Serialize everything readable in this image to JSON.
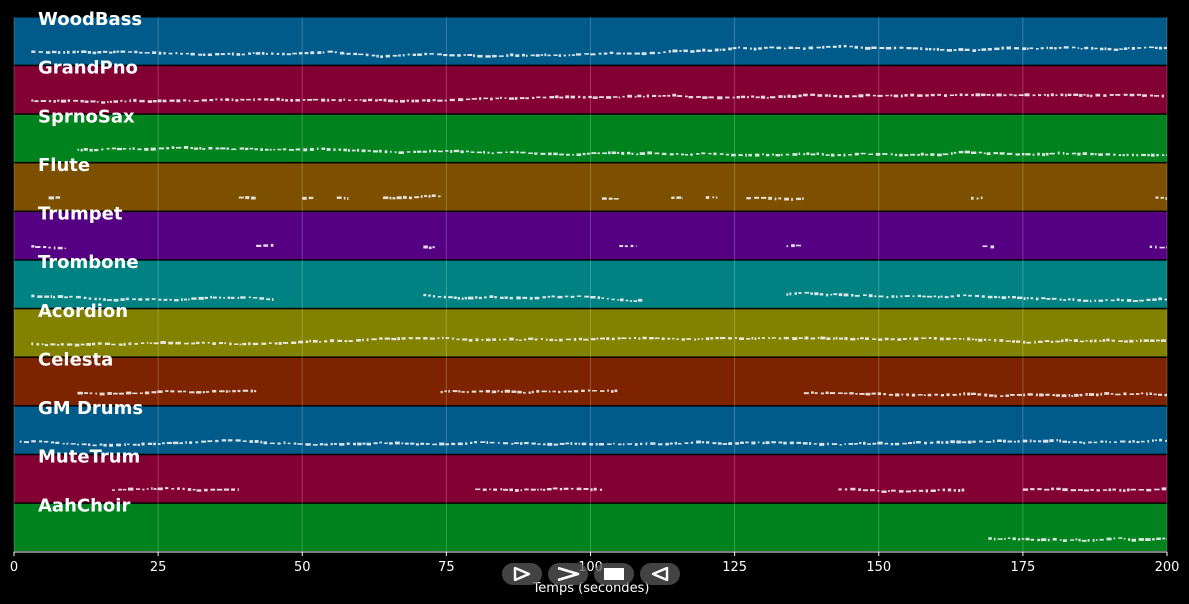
{
  "chart_data": {
    "type": "piano-roll",
    "title": "",
    "xlabel": "Temps (secondes)",
    "ylabel": "",
    "xlim": [
      0,
      200
    ],
    "xticks": [
      0,
      25,
      50,
      75,
      100,
      125,
      150,
      175,
      200
    ],
    "grid": true,
    "tracks": [
      {
        "name": "WoodBass",
        "color": "#005a8a",
        "segments": [
          [
            3,
            200
          ]
        ]
      },
      {
        "name": "GrandPno",
        "color": "#820032",
        "segments": [
          [
            3,
            200
          ]
        ]
      },
      {
        "name": "SprnoSax",
        "color": "#00821e",
        "segments": [
          [
            11,
            200
          ]
        ]
      },
      {
        "name": "Flute",
        "color": "#7d5000",
        "segments": [
          [
            6,
            8
          ],
          [
            39,
            42
          ],
          [
            50,
            52
          ],
          [
            56,
            58
          ],
          [
            64,
            74
          ],
          [
            102,
            105
          ],
          [
            114,
            116
          ],
          [
            120,
            122
          ],
          [
            127,
            137
          ],
          [
            166,
            168
          ],
          [
            198,
            200
          ]
        ]
      },
      {
        "name": "Trumpet",
        "color": "#550082",
        "segments": [
          [
            3,
            9
          ],
          [
            42,
            45
          ],
          [
            71,
            73
          ],
          [
            105,
            108
          ],
          [
            134,
            137
          ],
          [
            168,
            170
          ],
          [
            197,
            200
          ]
        ]
      },
      {
        "name": "Trombone",
        "color": "#008282",
        "segments": [
          [
            3,
            45
          ],
          [
            71,
            109
          ],
          [
            134,
            200
          ]
        ]
      },
      {
        "name": "Acordion",
        "color": "#828200",
        "segments": [
          [
            3,
            200
          ]
        ]
      },
      {
        "name": "Celesta",
        "color": "#7d2300",
        "segments": [
          [
            11,
            42
          ],
          [
            74,
            105
          ],
          [
            137,
            200
          ]
        ]
      },
      {
        "name": "GM Drums",
        "color": "#005a8a",
        "segments": [
          [
            1,
            200
          ]
        ]
      },
      {
        "name": "MuteTrum",
        "color": "#820032",
        "segments": [
          [
            17,
            39
          ],
          [
            80,
            102
          ],
          [
            143,
            165
          ],
          [
            175,
            200
          ]
        ]
      },
      {
        "name": "AahChoir",
        "color": "#00821e",
        "segments": [
          [
            169,
            200
          ]
        ]
      }
    ]
  },
  "controls": [
    {
      "name": "play-button",
      "icon": "play-icon"
    },
    {
      "name": "forward-button",
      "icon": "forward-icon"
    },
    {
      "name": "stop-button",
      "icon": "stop-icon"
    },
    {
      "name": "rewind-button",
      "icon": "rewind-icon"
    }
  ]
}
